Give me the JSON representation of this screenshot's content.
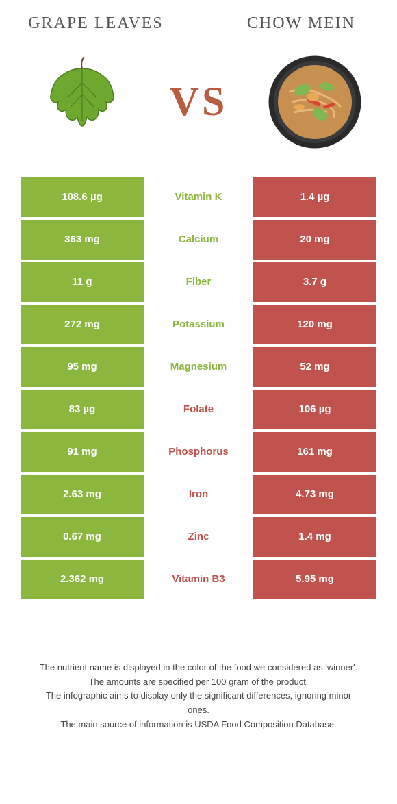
{
  "left_food": "GRAPE LEAVES",
  "right_food": "CHOW MEIN",
  "vs": "VS",
  "colors": {
    "left": "#8bb73f",
    "right": "#c0534d",
    "vs": "#b85c3e"
  },
  "rows": [
    {
      "left": "108.6 µg",
      "nutrient": "Vitamin K",
      "right": "1.4 µg",
      "winner": "left"
    },
    {
      "left": "363 mg",
      "nutrient": "Calcium",
      "right": "20 mg",
      "winner": "left"
    },
    {
      "left": "11 g",
      "nutrient": "Fiber",
      "right": "3.7 g",
      "winner": "left"
    },
    {
      "left": "272 mg",
      "nutrient": "Potassium",
      "right": "120 mg",
      "winner": "left"
    },
    {
      "left": "95 mg",
      "nutrient": "Magnesium",
      "right": "52 mg",
      "winner": "left"
    },
    {
      "left": "83 µg",
      "nutrient": "Folate",
      "right": "106 µg",
      "winner": "right"
    },
    {
      "left": "91 mg",
      "nutrient": "Phosphorus",
      "right": "161 mg",
      "winner": "right"
    },
    {
      "left": "2.63 mg",
      "nutrient": "Iron",
      "right": "4.73 mg",
      "winner": "right"
    },
    {
      "left": "0.67 mg",
      "nutrient": "Zinc",
      "right": "1.4 mg",
      "winner": "right"
    },
    {
      "left": "2.362 mg",
      "nutrient": "Vitamin B3",
      "right": "5.95 mg",
      "winner": "right"
    }
  ],
  "footer": {
    "l1": "The nutrient name is displayed in the color of the food we considered as 'winner'.",
    "l2": "The amounts are specified per 100 gram of the product.",
    "l3": "The infographic aims to display only the significant differences, ignoring minor ones.",
    "l4": "The main source of information is USDA Food Composition Database."
  }
}
